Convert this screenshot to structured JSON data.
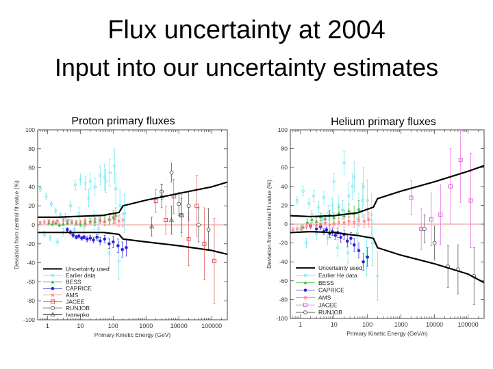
{
  "slide": {
    "title": "Flux uncertainty at 2004",
    "subtitle": "Input into our uncertainty estimates"
  },
  "colors": {
    "uncertainty": "#000000",
    "earlier": "#5fe6ee",
    "bess": "#2fbf3a",
    "caprice": "#2f20e0",
    "ams": "#ff7777",
    "jacee": "#e05050",
    "jacee_he": "#e060e0",
    "runjob": "#444444",
    "ivanenko": "#444444",
    "zero_line": "#e06666",
    "frame": "#444444"
  },
  "chart_data": [
    {
      "type": "scatter",
      "title": "Proton primary fluxes",
      "xlabel": "Primary Kinetic Energy (GeV)",
      "ylabel": "Deviation from central fit value (%)",
      "xscale": "log",
      "xlim": [
        0.5,
        300000
      ],
      "ylim": [
        -100,
        100
      ],
      "xticks": [
        1,
        10,
        100,
        1000,
        10000,
        100000
      ],
      "xtick_labels": [
        "1",
        "10",
        "100",
        "1000",
        "10000",
        "100000"
      ],
      "yticks": [
        -100,
        -80,
        -60,
        -40,
        -20,
        0,
        20,
        40,
        60,
        80,
        100
      ],
      "legend_position": "bottom-left",
      "legend": [
        "Uncertainty used",
        "Earlier data",
        "BESS",
        "CAPRICE",
        "AMS",
        "JACEE",
        "RUNJOB",
        "Ivanenko"
      ],
      "uncertainty_upper": {
        "x": [
          0.5,
          2,
          10,
          50,
          150,
          200,
          1000,
          10000,
          100000,
          300000
        ],
        "y": [
          8,
          8,
          9,
          10,
          13,
          20,
          26,
          33,
          40,
          45
        ]
      },
      "uncertainty_lower": {
        "x": [
          0.5,
          2,
          10,
          50,
          150,
          200,
          1000,
          10000,
          100000,
          300000
        ],
        "y": [
          -8,
          -8,
          -8,
          -8,
          -10,
          -15,
          -18,
          -22,
          -27,
          -31
        ]
      },
      "series": [
        {
          "name": "Earlier data",
          "style": "earlier",
          "x": [
            0.6,
            0.9,
            1.3,
            1.8,
            2.5,
            3.5,
            5,
            7,
            10,
            14,
            20,
            28,
            40,
            60,
            80,
            120,
            160,
            220,
            0.8,
            1.2,
            2,
            3,
            4.5,
            6.5,
            9,
            13,
            18,
            26,
            36,
            55,
            75,
            110,
            150
          ],
          "y": [
            38,
            30,
            22,
            15,
            10,
            8,
            20,
            42,
            48,
            44,
            46,
            40,
            52,
            46,
            55,
            38,
            20,
            12,
            -10,
            -14,
            -18,
            -8,
            5,
            -5,
            12,
            -2,
            28,
            5,
            -4,
            50,
            -30,
            62,
            -38
          ],
          "err": [
            3,
            3,
            3,
            3,
            3,
            4,
            5,
            5,
            6,
            7,
            8,
            9,
            10,
            12,
            14,
            16,
            18,
            20,
            3,
            3,
            3,
            4,
            5,
            5,
            6,
            7,
            9,
            10,
            12,
            14,
            16,
            18,
            20
          ]
        },
        {
          "name": "BESS",
          "style": "bess",
          "x": [
            1.1,
            1.4,
            1.8,
            2.3,
            3,
            4,
            5.5,
            7.5,
            10,
            14,
            20,
            28,
            40,
            55,
            75,
            100,
            120
          ],
          "y": [
            2,
            1,
            2,
            0,
            1,
            2,
            3,
            2,
            1,
            2,
            4,
            3,
            5,
            4,
            6,
            8,
            10
          ],
          "err": [
            2,
            2,
            2,
            2,
            2,
            2,
            2,
            3,
            3,
            3,
            3,
            4,
            4,
            5,
            6,
            7,
            8
          ]
        },
        {
          "name": "CAPRICE",
          "style": "caprice",
          "x": [
            4,
            5,
            6,
            7.5,
            9,
            11,
            13,
            16,
            20,
            25,
            32,
            40,
            55,
            75,
            100,
            140,
            190,
            250
          ],
          "y": [
            -5,
            -8,
            -11,
            -13,
            -12,
            -14,
            -13,
            -15,
            -14,
            -16,
            -13,
            -17,
            -15,
            -20,
            -18,
            -22,
            -26,
            -24
          ],
          "err": [
            2,
            2,
            2,
            2,
            2,
            2,
            2,
            3,
            3,
            3,
            3,
            4,
            4,
            5,
            6,
            7,
            8,
            9
          ]
        },
        {
          "name": "AMS",
          "style": "ams",
          "x": [
            0.6,
            0.8,
            1.1,
            1.5,
            2,
            3,
            4,
            5.5,
            7.5,
            10,
            14,
            20,
            28,
            40,
            55,
            80,
            110,
            150,
            200
          ],
          "y": [
            2,
            3,
            4,
            3,
            4,
            5,
            4,
            3,
            2,
            3,
            4,
            3,
            5,
            4,
            3,
            5,
            6,
            4,
            5
          ],
          "err": [
            2,
            2,
            2,
            2,
            2,
            2,
            2,
            2,
            2,
            2,
            3,
            3,
            3,
            3,
            4,
            4,
            5,
            6,
            7
          ]
        },
        {
          "name": "JACEE",
          "style": "jacee",
          "x": [
            2000,
            4000,
            7000,
            12000,
            20000,
            35000,
            60000,
            120000
          ],
          "y": [
            25,
            5,
            30,
            10,
            -15,
            20,
            -20,
            -38
          ],
          "err": [
            12,
            15,
            18,
            22,
            28,
            32,
            38,
            45
          ]
        },
        {
          "name": "RUNJOB",
          "style": "runjob",
          "x": [
            3000,
            6000,
            10000,
            20000,
            40000,
            80000
          ],
          "y": [
            35,
            55,
            22,
            20,
            0,
            -5
          ],
          "err": [
            8,
            10,
            12,
            15,
            18,
            22
          ]
        },
        {
          "name": "Ivanenko",
          "style": "ivanenko",
          "x": [
            1500,
            3000,
            6000,
            12000
          ],
          "y": [
            -2,
            30,
            5,
            10
          ],
          "err": [
            10,
            12,
            15,
            18
          ]
        }
      ]
    },
    {
      "type": "scatter",
      "title": "Helium primary fluxes",
      "xlabel": "Primary Kinetic Energy (GeV/n)",
      "ylabel": "Deviation from central fit value (%)",
      "xscale": "log",
      "xlim": [
        0.5,
        300000
      ],
      "ylim": [
        -100,
        100
      ],
      "xticks": [
        1,
        10,
        100,
        1000,
        10000,
        100000
      ],
      "xtick_labels": [
        "1",
        "10",
        "100",
        "1000",
        "10000",
        "100000"
      ],
      "yticks": [
        -100,
        -80,
        -60,
        -40,
        -20,
        0,
        20,
        40,
        60,
        80,
        100
      ],
      "legend_position": "bottom-left",
      "legend": [
        "Uncertainty used",
        "Earlier He data",
        "BESS",
        "CAPRICE",
        "AMS",
        "JACEE",
        "RUNJOB"
      ],
      "uncertainty_upper": {
        "x": [
          0.5,
          2,
          10,
          50,
          150,
          200,
          1000,
          10000,
          100000,
          300000
        ],
        "y": [
          9,
          8,
          9,
          12,
          18,
          27,
          35,
          45,
          56,
          62
        ]
      },
      "uncertainty_lower": {
        "x": [
          0.5,
          2,
          10,
          50,
          150,
          200,
          1000,
          10000,
          100000,
          300000
        ],
        "y": [
          -9,
          -8,
          -9,
          -12,
          -15,
          -25,
          -33,
          -42,
          -53,
          -62
        ]
      },
      "series": [
        {
          "name": "Earlier He data",
          "style": "earlier",
          "x": [
            0.8,
            1.2,
            1.8,
            2.5,
            3.5,
            5,
            7,
            10,
            14,
            20,
            28,
            40,
            55,
            75,
            100,
            140,
            200,
            1,
            1.5,
            2.2,
            3,
            4.5,
            6.5,
            9,
            13,
            18,
            26,
            36,
            50,
            70,
            95,
            130
          ],
          "y": [
            25,
            35,
            22,
            30,
            18,
            28,
            12,
            45,
            20,
            65,
            30,
            50,
            15,
            40,
            25,
            -20,
            -55,
            -5,
            -20,
            10,
            -10,
            5,
            -15,
            20,
            -25,
            15,
            -30,
            40,
            -10,
            25,
            -35,
            10
          ],
          "err": [
            4,
            5,
            5,
            6,
            6,
            7,
            8,
            9,
            10,
            12,
            14,
            16,
            18,
            20,
            22,
            24,
            26,
            4,
            5,
            5,
            6,
            6,
            7,
            8,
            9,
            10,
            12,
            14,
            16,
            18,
            20,
            22
          ]
        },
        {
          "name": "BESS",
          "style": "bess",
          "x": [
            1.2,
            1.6,
            2.2,
            3,
            4,
            5.5,
            7.5,
            10,
            14,
            20,
            28,
            40,
            55
          ],
          "y": [
            -3,
            2,
            5,
            3,
            8,
            6,
            10,
            7,
            12,
            9,
            14,
            11,
            16
          ],
          "err": [
            3,
            3,
            3,
            4,
            4,
            4,
            5,
            5,
            6,
            6,
            7,
            8,
            9
          ]
        },
        {
          "name": "CAPRICE",
          "style": "caprice",
          "x": [
            2,
            3,
            4,
            5,
            6,
            7.5,
            9,
            11,
            13,
            16,
            20,
            25,
            32,
            40,
            55,
            75,
            100
          ],
          "y": [
            -2,
            -5,
            -3,
            -8,
            -6,
            -10,
            -8,
            -12,
            -9,
            -14,
            -11,
            -18,
            -15,
            -22,
            -28,
            -40,
            -35
          ],
          "err": [
            3,
            3,
            3,
            3,
            3,
            4,
            4,
            4,
            5,
            5,
            5,
            6,
            6,
            7,
            8,
            9,
            10
          ]
        },
        {
          "name": "AMS",
          "style": "ams",
          "x": [
            0.6,
            0.8,
            1.1,
            1.5,
            2,
            3,
            4,
            5.5,
            7.5,
            10,
            14,
            20,
            28,
            40,
            55,
            80,
            110
          ],
          "y": [
            -6,
            -5,
            -4,
            -3,
            -2,
            -1,
            0,
            1,
            -1,
            0,
            2,
            1,
            3,
            2,
            4,
            3,
            5
          ],
          "err": [
            3,
            3,
            3,
            3,
            3,
            3,
            3,
            3,
            4,
            4,
            4,
            5,
            5,
            6,
            6,
            7,
            8
          ]
        },
        {
          "name": "JACEE",
          "style": "jacee_he",
          "x": [
            2000,
            4000,
            8000,
            15000,
            30000,
            60000,
            120000
          ],
          "y": [
            28,
            -5,
            5,
            10,
            40,
            68,
            25
          ],
          "err": [
            18,
            22,
            28,
            32,
            40,
            45,
            50
          ]
        },
        {
          "name": "RUNJOB",
          "style": "runjob",
          "x": [
            5000,
            10000,
            25000,
            50000,
            150000
          ],
          "y": [
            -5,
            -20,
            -45,
            -48,
            -55
          ],
          "err": [
            15,
            18,
            22,
            26,
            30
          ]
        }
      ]
    }
  ]
}
